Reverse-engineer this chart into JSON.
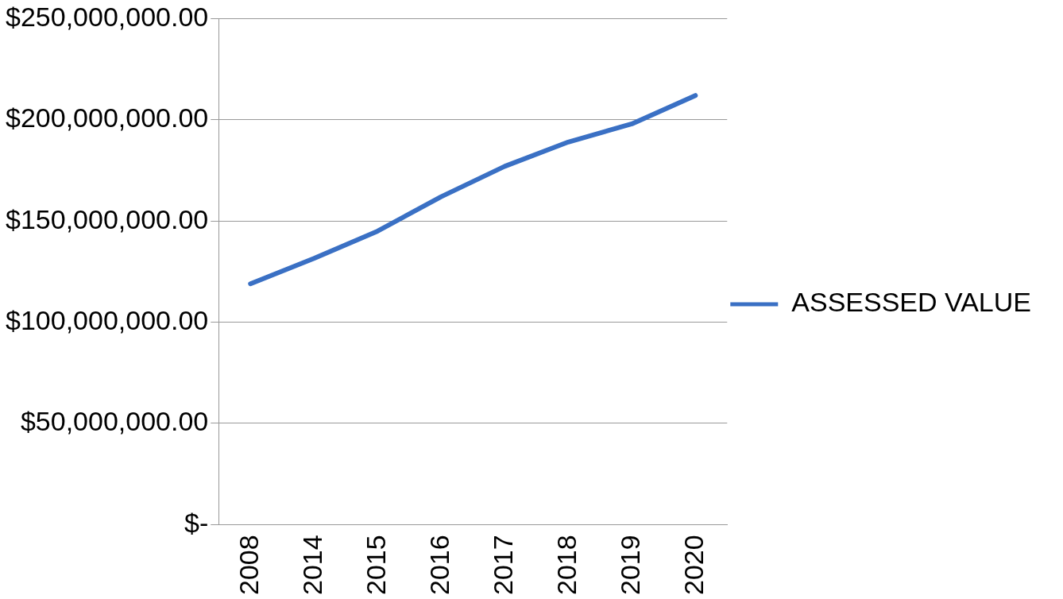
{
  "chart_data": {
    "type": "line",
    "categories": [
      "2008",
      "2014",
      "2015",
      "2016",
      "2017",
      "2018",
      "2019",
      "2020"
    ],
    "series": [
      {
        "name": "ASSESSED VALUE",
        "color": "#3a70c4",
        "values": [
          119000000,
          131500000,
          145000000,
          162000000,
          177000000,
          189000000,
          198000000,
          212000000
        ]
      }
    ],
    "ylim": [
      0,
      250000000
    ],
    "yticks": [
      {
        "value": 0,
        "label": "$-"
      },
      {
        "value": 50000000,
        "label": "$50,000,000.00"
      },
      {
        "value": 100000000,
        "label": "$100,000,000.00"
      },
      {
        "value": 150000000,
        "label": "$150,000,000.00"
      },
      {
        "value": 200000000,
        "label": "$200,000,000.00"
      },
      {
        "value": 250000000,
        "label": "$250,000,000.00"
      }
    ],
    "grid": "y",
    "legend": "right",
    "marker": "none",
    "line_style": "solid"
  }
}
